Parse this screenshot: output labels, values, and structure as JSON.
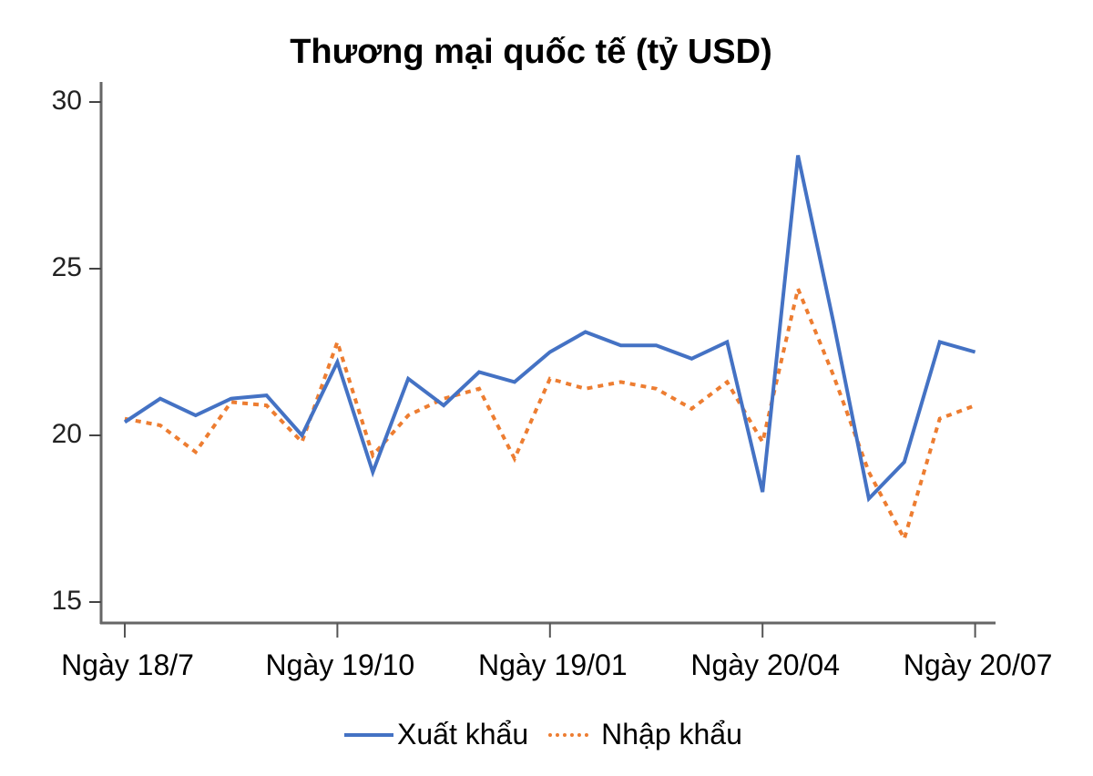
{
  "chart_data": {
    "type": "line",
    "title": "Thương mại quốc tế (tỷ USD)",
    "xlabel": "",
    "ylabel": "",
    "ylim": [
      15,
      30
    ],
    "yticks": [
      15,
      20,
      25,
      30
    ],
    "x_tick_labels": [
      "Ngày 18/7",
      "Ngày 19/10",
      "Ngày 19/01",
      "Ngày 20/04",
      "Ngày 20/07"
    ],
    "x_tick_indices": [
      0,
      6,
      12,
      18,
      24
    ],
    "grid": false,
    "legend_position": "bottom",
    "series": [
      {
        "name": "Xuất khẩu",
        "color": "#4472c4",
        "style": "solid",
        "values": [
          20.4,
          21.1,
          20.6,
          21.1,
          21.2,
          20.0,
          22.2,
          18.9,
          21.7,
          20.9,
          21.9,
          21.6,
          22.5,
          23.1,
          22.7,
          22.7,
          22.3,
          22.8,
          18.3,
          28.4,
          23.4,
          18.1,
          19.2,
          22.8,
          22.5
        ]
      },
      {
        "name": "Nhập khẩu",
        "color": "#ed7d31",
        "style": "dotted",
        "values": [
          20.5,
          20.3,
          19.5,
          21.0,
          20.9,
          19.8,
          22.8,
          19.4,
          20.6,
          21.1,
          21.4,
          19.3,
          21.7,
          21.4,
          21.6,
          21.4,
          20.8,
          21.6,
          19.8,
          24.4,
          21.8,
          18.9,
          16.9,
          20.5,
          20.9
        ]
      }
    ]
  },
  "legend": {
    "items": [
      "Xuất khẩu",
      "Nhập khẩu"
    ]
  }
}
